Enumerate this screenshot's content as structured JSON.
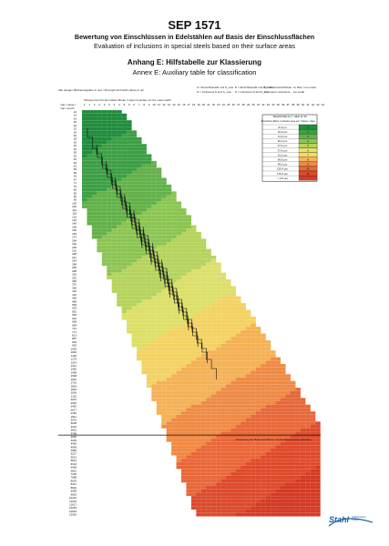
{
  "document": {
    "title": "SEP 1571",
    "subtitle_de": "Bewertung von Einschlüssen in Edelstählen auf Basis der Einschlussflächen",
    "subtitle_en": "Evaluation of inclusions in special steels based on their surface areas",
    "annex_de": "Anhang E: Hilfstabelle zur Klassierung",
    "annex_en": "Annex E: Auxiliary table for classification"
  },
  "table": {
    "top_note": "Alle Längen (Breitenangaben in µm) / All length and width values in µm",
    "legend": [
      "S = Einschlüsse/E und S_max",
      "D = Einschlüsse/E und D_max",
      "M = Makroeinschlüsse",
      "→ zu klein / too small",
      "O = Inclusions S and S_max",
      "D = inclusions D and D_max",
      "M = macro inclusions",
      "→ too small"
    ],
    "column_header": "Obergrenzen für die mittlere Breite / Upper boundary for the mean width",
    "row_header_de": "max. Länge /",
    "row_header_en": "max. length",
    "widths": [
      1,
      1,
      2,
      2,
      3,
      3,
      4,
      4,
      5,
      5,
      6,
      7,
      8,
      9,
      10,
      11,
      12,
      13,
      14,
      15,
      16,
      17,
      18,
      19,
      20,
      21,
      22,
      23,
      24,
      25,
      26,
      27,
      28,
      29,
      30,
      31,
      32,
      33,
      34,
      35,
      36,
      37,
      38,
      39,
      40,
      41,
      42,
      43,
      44
    ],
    "lengths": [
      "12",
      "14",
      "16",
      "18",
      "20",
      "22",
      "24",
      "26",
      "28",
      "30",
      "33",
      "36",
      "39",
      "42",
      "45",
      "48",
      "51",
      "55",
      "59",
      "63",
      "67",
      "71",
      "75",
      "80",
      "85",
      "90",
      "95",
      "100",
      "106",
      "112",
      "118",
      "125",
      "132",
      "140",
      "148",
      "156",
      "165",
      "174",
      "184",
      "194",
      "205",
      "216",
      "228",
      "241",
      "254",
      "268",
      "283",
      "298",
      "315",
      "332",
      "350",
      "370",
      "390",
      "410",
      "432",
      "456",
      "480",
      "506",
      "533",
      "562",
      "592",
      "624",
      "658",
      "694",
      "731",
      "771",
      "813",
      "857",
      "904",
      "953",
      "1005",
      "1060",
      "1118",
      "1179",
      "1243",
      "1311",
      "1382",
      "1458",
      "1538",
      "1622",
      "1710",
      "1803",
      "1902",
      "2006",
      "2115",
      "2231",
      "2353",
      "2481",
      "2617",
      "2760",
      "2911",
      "3070",
      "3238",
      "3415",
      "3601",
      "3798",
      "4006",
      "4225",
      "4455",
      "4699",
      "4956",
      "5227",
      "5513",
      "5814",
      "6132",
      "6468",
      "6822",
      "7195",
      "7588",
      "8003",
      "8441",
      "8902",
      "9389",
      "9902",
      "10444",
      "11015",
      "11617",
      "12253",
      "12923",
      "13630",
      "14375",
      "15161",
      "15990",
      "16864",
      "17786",
      "18758",
      "19784",
      "20866",
      "22007",
      "23210",
      "24479",
      "25818",
      "27229",
      "28718",
      "30288",
      "31944",
      "33690",
      "35532",
      "37475",
      "39524",
      "41685",
      "43964"
    ],
    "shown_lengths_count": 120,
    "marker_row_text": "Auswertung der Makroeinschlüsse / Evaluation of macro inclusions"
  },
  "class_table": {
    "title": "Tabelle/Table E 1 / table for Ri",
    "col1_header": "Einschluss-fläche / Inclusion area µm²",
    "col2_header": "Klasse / class",
    "rows": [
      {
        "area": "8,0 µm",
        "cls": "1"
      },
      {
        "area": "10,9 µm",
        "cls": "2"
      },
      {
        "area": "14,9 µm",
        "cls": "3"
      },
      {
        "area": "20,3 µm",
        "cls": "4"
      },
      {
        "area": "27,6 µm",
        "cls": "5"
      },
      {
        "area": "37,6 µm",
        "cls": "6"
      },
      {
        "area": "51,2 µm",
        "cls": "7"
      },
      {
        "area": "69,8 µm",
        "cls": "8"
      },
      {
        "area": "95,0 µm",
        "cls": "9"
      },
      {
        "area": "129,4 µm",
        "cls": "10"
      },
      {
        "area": "176,3 µm",
        "cls": "11"
      },
      {
        "area": "> 176 µm",
        "cls": "-"
      }
    ],
    "colors": [
      "#1e8f3e",
      "#3fa144",
      "#5fb34a",
      "#8cc551",
      "#b6d35a",
      "#e3e36a",
      "#f6d866",
      "#f4b458",
      "#ef8c45",
      "#e8683a",
      "#de4a2c",
      "#d83c26"
    ]
  },
  "logo": {
    "word": "Stahl",
    "side_line1": "Stahlinstitut",
    "side_line2": "VDEh"
  }
}
